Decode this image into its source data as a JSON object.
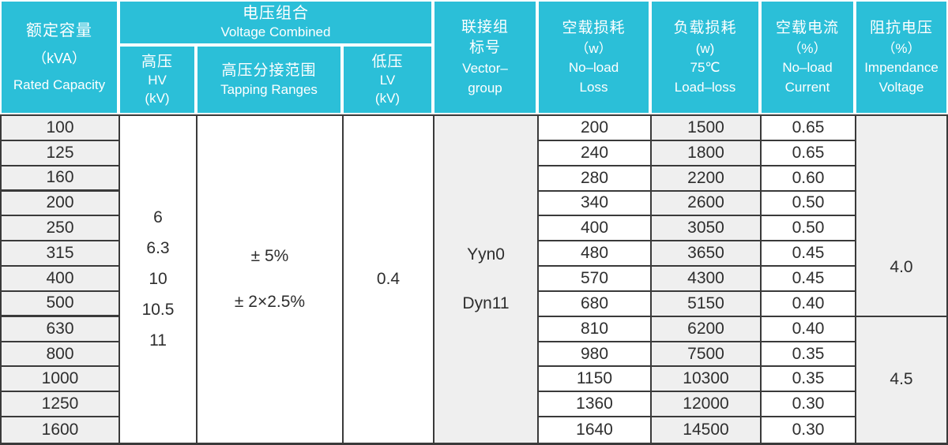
{
  "colors": {
    "header_bg": "#2bbfd8",
    "row_gray": "#efefef",
    "grid_line": "#3a3a3a",
    "header_text": "#ffffff",
    "body_text": "#2e2e2e"
  },
  "table": {
    "header": {
      "rated_capacity": {
        "lines": [
          "额定容量",
          "（kVA）",
          "Rated Capacity"
        ]
      },
      "voltage_combined": {
        "lines": [
          "电压组合",
          "Voltage Combined"
        ]
      },
      "hv": {
        "lines": [
          "高压",
          "HV",
          "(kV)"
        ]
      },
      "tapping": {
        "lines": [
          "高压分接范围",
          "Tapping Ranges"
        ]
      },
      "lv": {
        "lines": [
          "低压",
          "LV",
          "(kV)"
        ]
      },
      "vector": {
        "lines": [
          "联接组",
          "标号",
          "Vector–",
          "group"
        ]
      },
      "no_load_loss": {
        "lines": [
          "空载损耗",
          "（w）",
          "No–load",
          "Loss"
        ]
      },
      "load_loss": {
        "lines": [
          "负载损耗",
          "(w)",
          "75℃",
          "Load–loss"
        ]
      },
      "no_load_current": {
        "lines": [
          "空载电流",
          "（%）",
          "No–load",
          "Current"
        ]
      },
      "impedance": {
        "lines": [
          "阻抗电压",
          "（%）",
          "Impendance",
          "Voltage"
        ]
      }
    },
    "merged": {
      "hv_values": [
        "6",
        "6.3",
        "10",
        "10.5",
        "11"
      ],
      "tapping_values": [
        "± 5%",
        "± 2×2.5%"
      ],
      "lv_value": "0.4",
      "vector_values": [
        "Yyn0",
        "Dyn11"
      ],
      "impedance_groups": [
        {
          "value": "4.0",
          "span": 8
        },
        {
          "value": "4.5",
          "span": 5
        }
      ]
    },
    "rows": [
      {
        "capacity": "100",
        "no_load_loss": "200",
        "load_loss": "1500",
        "no_load_current": "0.65"
      },
      {
        "capacity": "125",
        "no_load_loss": "240",
        "load_loss": "1800",
        "no_load_current": "0.65"
      },
      {
        "capacity": "160",
        "no_load_loss": "280",
        "load_loss": "2200",
        "no_load_current": "0.60"
      },
      {
        "capacity": "200",
        "no_load_loss": "340",
        "load_loss": "2600",
        "no_load_current": "0.50"
      },
      {
        "capacity": "250",
        "no_load_loss": "400",
        "load_loss": "3050",
        "no_load_current": "0.50"
      },
      {
        "capacity": "315",
        "no_load_loss": "480",
        "load_loss": "3650",
        "no_load_current": "0.45"
      },
      {
        "capacity": "400",
        "no_load_loss": "570",
        "load_loss": "4300",
        "no_load_current": "0.45"
      },
      {
        "capacity": "500",
        "no_load_loss": "680",
        "load_loss": "5150",
        "no_load_current": "0.40"
      },
      {
        "capacity": "630",
        "no_load_loss": "810",
        "load_loss": "6200",
        "no_load_current": "0.40"
      },
      {
        "capacity": "800",
        "no_load_loss": "980",
        "load_loss": "7500",
        "no_load_current": "0.35"
      },
      {
        "capacity": "1000",
        "no_load_loss": "1150",
        "load_loss": "10300",
        "no_load_current": "0.35"
      },
      {
        "capacity": "1250",
        "no_load_loss": "1360",
        "load_loss": "12000",
        "no_load_current": "0.30"
      },
      {
        "capacity": "1600",
        "no_load_loss": "1640",
        "load_loss": "14500",
        "no_load_current": "0.30"
      }
    ]
  }
}
